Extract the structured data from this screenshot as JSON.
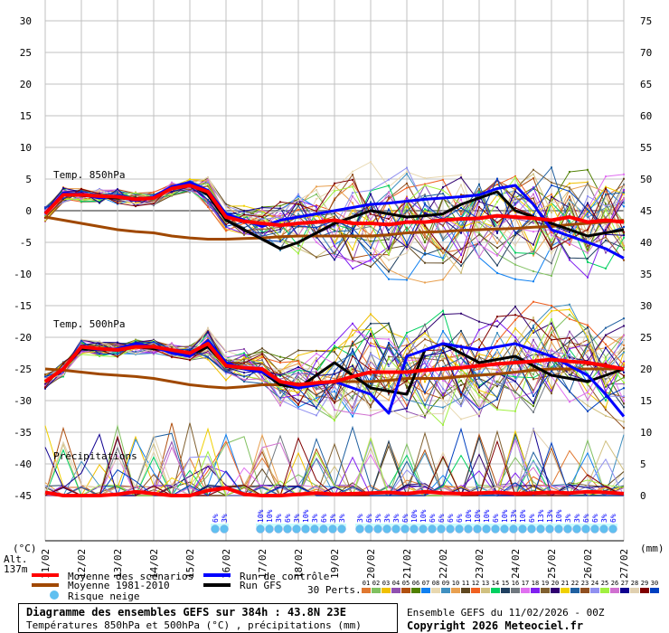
{
  "chart_data": {
    "type": "line",
    "title": "Diagramme des ensembles GEFS sur 384h : 43.8N 23E",
    "subtitle": "Températures 850hPa et 500hPa (°C) , précipitations (mm)",
    "run_info": "Ensemble GEFS du 11/02/2026 - 00Z",
    "copyright": "Copyright 2026 Meteociel.fr",
    "altitude": "Alt. 137m",
    "y_left_label": "(°C)",
    "y_right_label": "(mm)",
    "ylim_left": [
      -45,
      30
    ],
    "ylim_right": [
      0,
      75
    ],
    "y_left_ticks": [
      "30",
      "25",
      "20",
      "15",
      "10",
      "5",
      "0",
      "-5",
      "-10",
      "-15",
      "-20",
      "-25",
      "-30",
      "-35",
      "-40",
      "-45"
    ],
    "y_right_ticks": [
      "75",
      "70",
      "65",
      "60",
      "55",
      "50",
      "45",
      "40",
      "35",
      "30",
      "25",
      "20",
      "15",
      "10",
      "5",
      "0"
    ],
    "x_ticks": [
      "11/02",
      "12/02",
      "13/02",
      "14/02",
      "15/02",
      "16/02",
      "17/02",
      "18/02",
      "19/02",
      "20/02",
      "21/02",
      "22/02",
      "23/02",
      "24/02",
      "25/02",
      "26/02",
      "27/02"
    ],
    "x_step_hours": 12,
    "panel_labels": {
      "t850": "Temp. 850hPa",
      "t500": "Temp. 500hPa",
      "precip": "Précipitations"
    },
    "grid": true,
    "series": {
      "t850_mean": [
        -0.5,
        2.5,
        2.5,
        2.3,
        2.2,
        1.8,
        2.0,
        3.5,
        4.0,
        3.0,
        -1.0,
        -1.7,
        -2.0,
        -2.3,
        -2.0,
        -1.8,
        -1.5,
        -2.0,
        -2.0,
        -2.2,
        -1.8,
        -1.8,
        -1.5,
        -1.3,
        -1.2,
        -0.8,
        -1.0,
        -1.2,
        -1.5,
        -1.0,
        -1.8,
        -1.5,
        -1.8
      ],
      "t850_clim": [
        -1.0,
        -1.5,
        -2.0,
        -2.5,
        -3.0,
        -3.3,
        -3.5,
        -4.0,
        -4.3,
        -4.5,
        -4.5,
        -4.4,
        -4.3,
        -4.1,
        -4.0,
        -4.0,
        -4.0,
        -4.0,
        -4.0,
        -3.8,
        -3.5,
        -3.4,
        -3.3,
        -3.1,
        -3.0,
        -2.9,
        -2.8,
        -2.6,
        -2.5,
        -2.2,
        -2.0,
        -1.8,
        -1.5
      ],
      "t850_control": [
        -0.5,
        2.8,
        2.6,
        2.0,
        2.4,
        1.6,
        2.2,
        3.8,
        4.5,
        3.2,
        -0.5,
        -1.5,
        -2.5,
        -1.5,
        -1.0,
        -0.5,
        0.0,
        0.5,
        1.0,
        1.2,
        1.5,
        1.8,
        2.0,
        2.2,
        2.5,
        3.5,
        4.0,
        1.0,
        -3.0,
        -4.0,
        -5.0,
        -6.0,
        -7.5
      ],
      "t850_gfs": [
        -0.5,
        2.6,
        2.4,
        2.2,
        2.0,
        1.9,
        2.1,
        3.6,
        4.2,
        2.5,
        -1.5,
        -3.0,
        -4.5,
        -6.0,
        -5.0,
        -3.5,
        -2.0,
        -1.0,
        0.0,
        -0.5,
        -1.0,
        -0.8,
        -0.5,
        1.0,
        2.0,
        3.0,
        0.0,
        -1.0,
        -2.0,
        -3.0,
        -4.0,
        -3.5,
        -3.0
      ],
      "t500_mean": [
        -27,
        -25,
        -21.5,
        -21.8,
        -22,
        -21.5,
        -21.5,
        -22,
        -22.5,
        -21,
        -24.5,
        -24.8,
        -25,
        -27,
        -27.5,
        -27.2,
        -27,
        -26.2,
        -25.5,
        -25.5,
        -25.5,
        -25.2,
        -25,
        -24.8,
        -24.5,
        -24.2,
        -24,
        -23.8,
        -23.5,
        -23.8,
        -24,
        -24.5,
        -25
      ],
      "t500_clim": [
        -25,
        -25.2,
        -25.5,
        -25.8,
        -26,
        -26.2,
        -26.5,
        -27,
        -27.5,
        -27.8,
        -28,
        -27.8,
        -27.5,
        -27.5,
        -27.5,
        -27.2,
        -27,
        -27,
        -27,
        -26.8,
        -26.5,
        -26.5,
        -26.5,
        -26.2,
        -26,
        -25.8,
        -25.5,
        -25.2,
        -25,
        -25,
        -25,
        -25,
        -25
      ],
      "t500_control": [
        -27,
        -25,
        -21.5,
        -22,
        -21.8,
        -21,
        -21.5,
        -22.5,
        -23,
        -20.5,
        -24,
        -25,
        -25.5,
        -27,
        -28,
        -27.5,
        -27,
        -28,
        -29,
        -32,
        -23,
        -22,
        -21,
        -21.5,
        -22,
        -21.5,
        -21,
        -22,
        -23,
        -24.5,
        -26,
        -29,
        -32.5
      ],
      "t500_gfs": [
        -27,
        -25,
        -21.8,
        -22,
        -22,
        -21.5,
        -21.8,
        -22,
        -22.8,
        -21.5,
        -24.5,
        -25,
        -25.5,
        -27.5,
        -28,
        -26,
        -24,
        -26,
        -28,
        -28.5,
        -29,
        -22,
        -21,
        -22.5,
        -24,
        -23.5,
        -23,
        -24.5,
        -26,
        -26.5,
        -27,
        -26,
        -25
      ],
      "precip_mean": [
        0.5,
        0,
        0,
        0,
        0.2,
        0.6,
        0.3,
        0,
        0,
        0.8,
        1.2,
        0.2,
        0,
        0,
        0.2,
        0.4,
        0.2,
        0.3,
        0.4,
        0.5,
        0.3,
        0.6,
        0.4,
        0.3,
        0.4,
        0.5,
        0.3,
        0.4,
        0.5,
        0.4,
        0.6,
        0.5,
        0.3
      ]
    },
    "series_labels": {
      "mean": "Moyenne des scénarios",
      "clim": "Moyenne 1981-2010",
      "snow": "Risque neige",
      "control": "Run de contrôle",
      "gfs": "Run GFS",
      "perts": "30 Perts."
    },
    "perturbation_spread": {
      "t850_max": 5.5,
      "t500_max": 5.5,
      "precip_max": 12
    },
    "snow_risk": [
      {
        "hour": 114,
        "label": "6%"
      },
      {
        "hour": 120,
        "label": "3%"
      },
      {
        "hour": 144,
        "label": "10%"
      },
      {
        "hour": 150,
        "label": "10%"
      },
      {
        "hour": 156,
        "label": "3%"
      },
      {
        "hour": 162,
        "label": "6%"
      },
      {
        "hour": 168,
        "label": "3%"
      },
      {
        "hour": 174,
        "label": "10%"
      },
      {
        "hour": 180,
        "label": "3%"
      },
      {
        "hour": 186,
        "label": "6%"
      },
      {
        "hour": 192,
        "label": "3%"
      },
      {
        "hour": 198,
        "label": "3%"
      },
      {
        "hour": 210,
        "label": "3%"
      },
      {
        "hour": 216,
        "label": "6%"
      },
      {
        "hour": 222,
        "label": "3%"
      },
      {
        "hour": 228,
        "label": "3%"
      },
      {
        "hour": 234,
        "label": "3%"
      },
      {
        "hour": 240,
        "label": "6%"
      },
      {
        "hour": 246,
        "label": "10%"
      },
      {
        "hour": 252,
        "label": "10%"
      },
      {
        "hour": 258,
        "label": "6%"
      },
      {
        "hour": 264,
        "label": "6%"
      },
      {
        "hour": 270,
        "label": "6%"
      },
      {
        "hour": 276,
        "label": "6%"
      },
      {
        "hour": 282,
        "label": "10%"
      },
      {
        "hour": 288,
        "label": "10%"
      },
      {
        "hour": 294,
        "label": "10%"
      },
      {
        "hour": 300,
        "label": "6%"
      },
      {
        "hour": 306,
        "label": "10%"
      },
      {
        "hour": 312,
        "label": "13%"
      },
      {
        "hour": 318,
        "label": "10%"
      },
      {
        "hour": 324,
        "label": "6%"
      },
      {
        "hour": 330,
        "label": "13%"
      },
      {
        "hour": 336,
        "label": "13%"
      },
      {
        "hour": 342,
        "label": "10%"
      },
      {
        "hour": 348,
        "label": "3%"
      },
      {
        "hour": 354,
        "label": "3%"
      },
      {
        "hour": 360,
        "label": "6%"
      },
      {
        "hour": 366,
        "label": "6%"
      },
      {
        "hour": 372,
        "label": "3%"
      },
      {
        "hour": 378,
        "label": "6%"
      }
    ],
    "members": [
      {
        "id": "01",
        "color": "#e07830"
      },
      {
        "id": "02",
        "color": "#80c060"
      },
      {
        "id": "03",
        "color": "#f0c000"
      },
      {
        "id": "04",
        "color": "#9050b0"
      },
      {
        "id": "05",
        "color": "#b05010"
      },
      {
        "id": "06",
        "color": "#508000"
      },
      {
        "id": "07",
        "color": "#1080f0"
      },
      {
        "id": "08",
        "color": "#e8d8b0"
      },
      {
        "id": "09",
        "color": "#4090c0"
      },
      {
        "id": "10",
        "color": "#e8a050"
      },
      {
        "id": "11",
        "color": "#604820"
      },
      {
        "id": "12",
        "color": "#f06020"
      },
      {
        "id": "13",
        "color": "#d0c080"
      },
      {
        "id": "14",
        "color": "#00d060"
      },
      {
        "id": "15",
        "color": "#204060"
      },
      {
        "id": "16",
        "color": "#707880"
      },
      {
        "id": "17",
        "color": "#e070f0"
      },
      {
        "id": "18",
        "color": "#8020f0"
      },
      {
        "id": "19",
        "color": "#806030"
      },
      {
        "id": "20",
        "color": "#300070"
      },
      {
        "id": "21",
        "color": "#f0d000"
      },
      {
        "id": "22",
        "color": "#2060a0"
      },
      {
        "id": "23",
        "color": "#905020"
      },
      {
        "id": "24",
        "color": "#9090f0"
      },
      {
        "id": "25",
        "color": "#a0f040"
      },
      {
        "id": "26",
        "color": "#d070d0"
      },
      {
        "id": "27",
        "color": "#100090"
      },
      {
        "id": "28",
        "color": "#e0d0b0"
      },
      {
        "id": "29",
        "color": "#800000"
      },
      {
        "id": "30",
        "color": "#0040c0"
      }
    ],
    "colors": {
      "mean": "#ff0000",
      "clim": "#a04800",
      "control": "#0000ff",
      "gfs": "#000000",
      "snow": "#60c0f0",
      "grid": "#c0c0c0"
    }
  }
}
